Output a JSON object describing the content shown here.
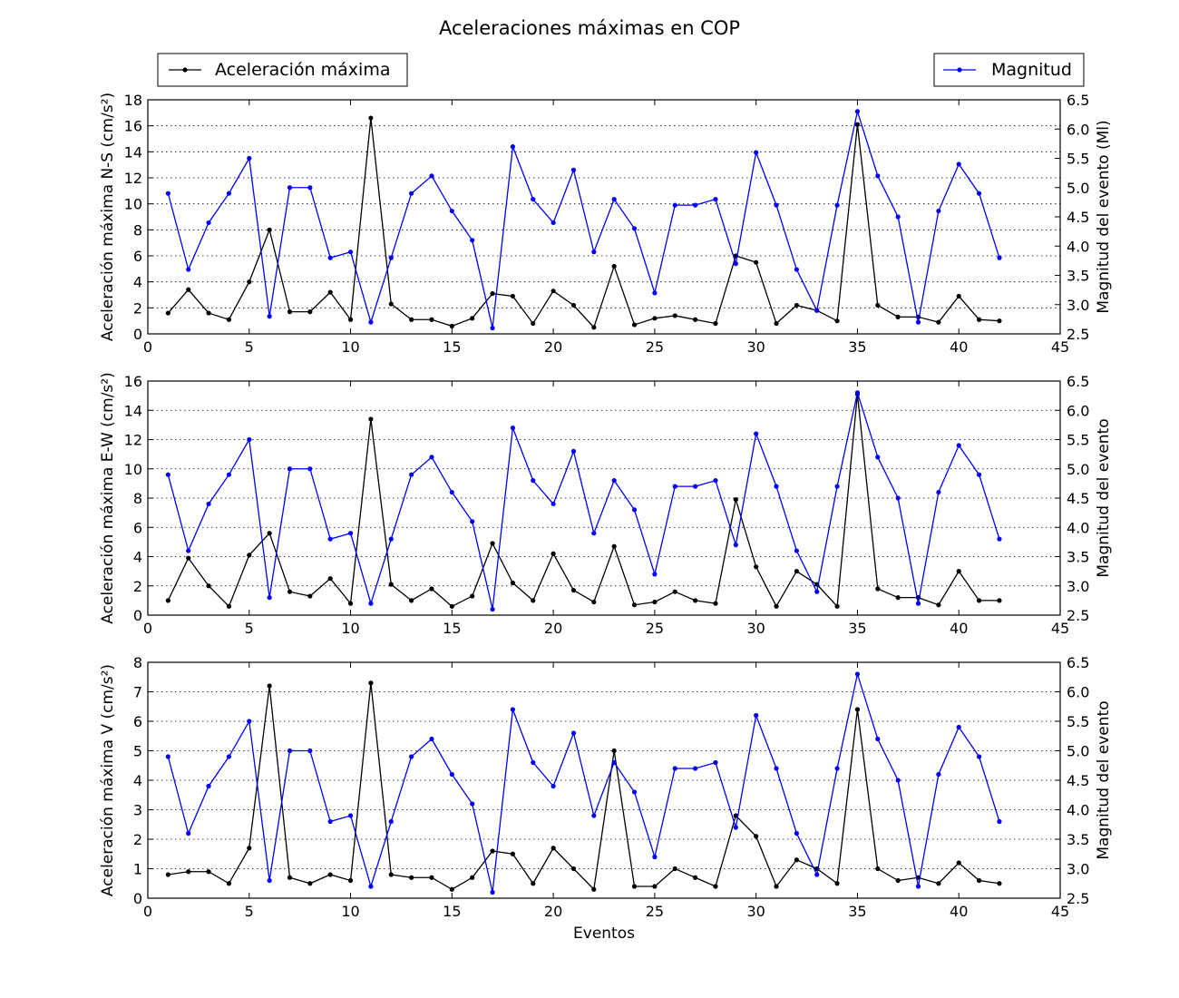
{
  "chart_data": {
    "type": "line",
    "title": "Aceleraciones máximas en COP",
    "legend": [
      {
        "label": "Aceleración máxima",
        "color": "#000000",
        "placement": "top-left"
      },
      {
        "label": "Magnitud",
        "color": "#0000ff",
        "placement": "top-right"
      }
    ],
    "x": [
      1,
      2,
      3,
      4,
      5,
      6,
      7,
      8,
      9,
      10,
      11,
      12,
      13,
      14,
      15,
      16,
      17,
      18,
      19,
      20,
      21,
      22,
      23,
      24,
      25,
      26,
      27,
      28,
      29,
      30,
      31,
      32,
      33,
      34,
      35,
      36,
      37,
      38,
      39,
      40,
      41,
      42
    ],
    "xlabel": "Eventos",
    "xlim": [
      0,
      45
    ],
    "xticks": [
      0,
      5,
      10,
      15,
      20,
      25,
      30,
      35,
      40,
      45
    ],
    "magnitude": [
      4.9,
      3.6,
      4.4,
      4.9,
      5.5,
      2.8,
      5.0,
      5.0,
      3.8,
      3.9,
      2.7,
      3.8,
      4.9,
      5.2,
      4.6,
      4.1,
      2.6,
      5.7,
      4.8,
      4.4,
      5.3,
      3.9,
      4.8,
      4.3,
      3.2,
      4.7,
      4.7,
      4.8,
      3.7,
      5.6,
      4.7,
      3.6,
      2.9,
      4.7,
      6.3,
      5.2,
      4.5,
      2.7,
      4.6,
      5.4,
      4.9,
      3.8
    ],
    "panels": [
      {
        "name": "ns",
        "ylabel": "Aceleración máxima N-S (cm/s²)",
        "ylabel2": "Magnitud del evento (Ml)",
        "ylim": [
          0,
          18
        ],
        "yticks": [
          0,
          2,
          4,
          6,
          8,
          10,
          12,
          14,
          16,
          18
        ],
        "ylim2": [
          2.5,
          6.5
        ],
        "yticks2": [
          "2.5",
          "3.0",
          "3.5",
          "4.0",
          "4.5",
          "5.0",
          "5.5",
          "6.0",
          "6.5"
        ],
        "acceleration": [
          1.6,
          3.4,
          1.6,
          1.1,
          4.0,
          8.0,
          1.7,
          1.7,
          3.2,
          1.1,
          16.6,
          2.3,
          1.1,
          1.1,
          0.6,
          1.2,
          3.1,
          2.9,
          0.8,
          3.3,
          2.2,
          0.5,
          5.2,
          0.7,
          1.2,
          1.4,
          1.1,
          0.8,
          6.0,
          5.5,
          0.8,
          2.2,
          1.8,
          1.0,
          16.1,
          2.2,
          1.3,
          1.3,
          0.9,
          2.9,
          1.1,
          1.0
        ]
      },
      {
        "name": "ew",
        "ylabel": "Aceleración máxima E-W (cm/s²)",
        "ylabel2": "Magnitud del evento",
        "ylim": [
          0,
          16
        ],
        "yticks": [
          0,
          2,
          4,
          6,
          8,
          10,
          12,
          14,
          16
        ],
        "ylim2": [
          2.5,
          6.5
        ],
        "yticks2": [
          "2.5",
          "3.0",
          "3.5",
          "4.0",
          "4.5",
          "5.0",
          "5.5",
          "6.0",
          "6.5"
        ],
        "acceleration": [
          1.0,
          3.9,
          2.0,
          0.6,
          4.1,
          5.6,
          1.6,
          1.3,
          2.5,
          0.8,
          13.4,
          2.1,
          1.0,
          1.8,
          0.6,
          1.3,
          4.9,
          2.2,
          1.0,
          4.2,
          1.7,
          0.9,
          4.7,
          0.7,
          0.9,
          1.6,
          1.0,
          0.8,
          7.9,
          3.3,
          0.6,
          3.0,
          2.1,
          0.6,
          15.1,
          1.8,
          1.2,
          1.2,
          0.7,
          3.0,
          1.0,
          1.0
        ]
      },
      {
        "name": "v",
        "ylabel": "Aceleración máxima V (cm/s²)",
        "ylabel2": "Magnitud del evento",
        "ylim": [
          0,
          8
        ],
        "yticks": [
          0,
          1,
          2,
          3,
          4,
          5,
          6,
          7,
          8
        ],
        "ylim2": [
          2.5,
          6.5
        ],
        "yticks2": [
          "2.5",
          "3.0",
          "3.5",
          "4.0",
          "4.5",
          "5.0",
          "5.5",
          "6.0",
          "6.5"
        ],
        "acceleration": [
          0.8,
          0.9,
          0.9,
          0.5,
          1.7,
          7.2,
          0.7,
          0.5,
          0.8,
          0.6,
          7.3,
          0.8,
          0.7,
          0.7,
          0.3,
          0.7,
          1.6,
          1.5,
          0.5,
          1.7,
          1.0,
          0.3,
          5.0,
          0.4,
          0.4,
          1.0,
          0.7,
          0.4,
          2.8,
          2.1,
          0.4,
          1.3,
          1.0,
          0.5,
          6.4,
          1.0,
          0.6,
          0.7,
          0.5,
          1.2,
          0.6,
          0.5
        ]
      }
    ]
  }
}
